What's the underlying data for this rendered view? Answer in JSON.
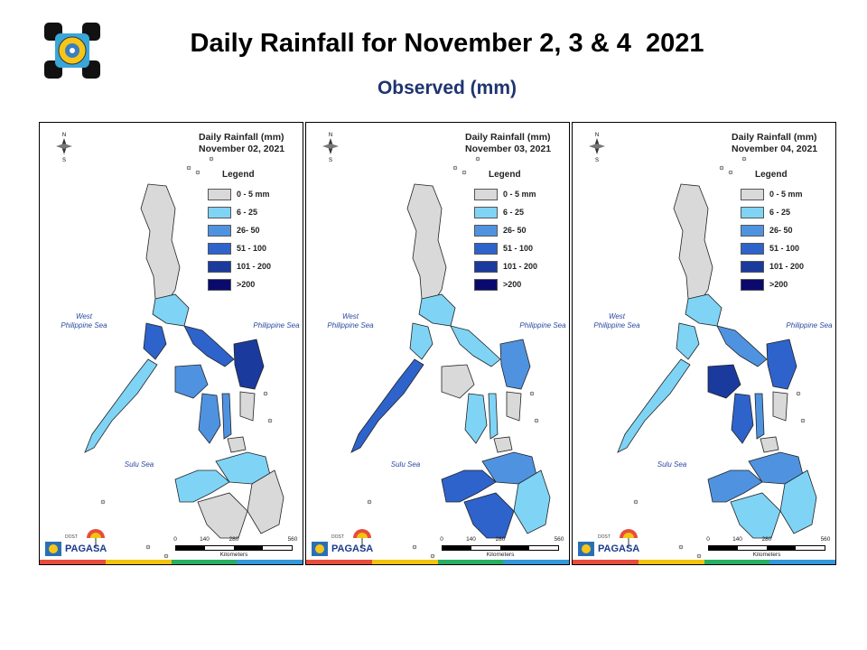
{
  "header": {
    "title": "Daily Rainfall for November 2, 3 & 4  2021",
    "subtitle": "Observed (mm)"
  },
  "legend": {
    "title": "Legend",
    "classes": [
      {
        "label": "0 - 5 mm",
        "color": "#d9d9d9"
      },
      {
        "label": "6 - 25",
        "color": "#7fd4f5"
      },
      {
        "label": "26- 50",
        "color": "#4f93e0"
      },
      {
        "label": "51 - 100",
        "color": "#2e63cc"
      },
      {
        "label": "101 - 200",
        "color": "#1b3a9e"
      },
      {
        "label": ">200",
        "color": "#0a0a6e"
      }
    ]
  },
  "sea_labels": {
    "west": "West\nPhilippine Sea",
    "east": "Philippine Sea",
    "sulu": "Sulu Sea"
  },
  "scale": {
    "ticks": [
      "0",
      "140",
      "280",
      "560"
    ],
    "unit": "Kilometers"
  },
  "branding": {
    "agency": "PAGASA",
    "small_text": "DOST"
  },
  "stripe_colors": [
    "#e74c3c",
    "#f1c40f",
    "#27ae60",
    "#3498db"
  ],
  "maps": [
    {
      "heading": "Daily Rainfall (mm)",
      "date": "November 02, 2021",
      "rain": {
        "palawan": 1,
        "mindoro": 3,
        "panay": 2,
        "negros": 2,
        "samar": 4,
        "bicol": 3,
        "luzon_central": 1,
        "cebu": 2,
        "mindanao_west": 0,
        "mindanao_east": 0,
        "zambo": 1,
        "mindanao_north": 1
      }
    },
    {
      "heading": "Daily Rainfall (mm)",
      "date": "November 03, 2021",
      "rain": {
        "palawan": 3,
        "mindoro": 1,
        "panay": 0,
        "negros": 1,
        "samar": 2,
        "bicol": 1,
        "luzon_central": 1,
        "cebu": 1,
        "mindanao_west": 3,
        "mindanao_east": 1,
        "zambo": 3,
        "mindanao_north": 2
      }
    },
    {
      "heading": "Daily Rainfall (mm)",
      "date": "November 04, 2021",
      "rain": {
        "palawan": 1,
        "mindoro": 1,
        "panay": 4,
        "negros": 3,
        "samar": 3,
        "bicol": 2,
        "luzon_central": 1,
        "cebu": 2,
        "mindanao_west": 1,
        "mindanao_east": 1,
        "zambo": 2,
        "mindanao_north": 2
      }
    }
  ]
}
